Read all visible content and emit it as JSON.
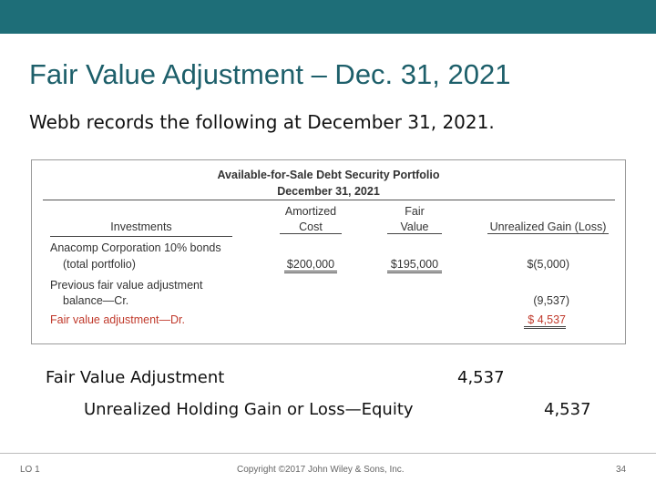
{
  "header": {
    "title": "Fair Value Adjustment – Dec. 31, 2021"
  },
  "intro": "Webb records the following at December 31, 2021.",
  "table": {
    "title": "Available-for-Sale Debt Security Portfolio",
    "subtitle": "December 31, 2021",
    "columns": [
      [
        "Investments"
      ],
      [
        "Amortized",
        "Cost"
      ],
      [
        "Fair",
        "Value"
      ],
      [
        "Unrealized Gain (Loss)"
      ]
    ],
    "rows": [
      {
        "label": [
          "Anacomp Corporation 10% bonds",
          "(total portfolio)"
        ],
        "cost": "$200,000",
        "fair": "$195,000",
        "gain": "$(5,000)"
      },
      {
        "label": [
          "Previous fair value adjustment",
          "balance—Cr."
        ],
        "gain": "(9,537)"
      },
      {
        "label": [
          "Fair value adjustment—Dr."
        ],
        "gain": "$ 4,537"
      }
    ]
  },
  "entry": {
    "debit_account": "Fair Value Adjustment",
    "debit": "4,537",
    "credit_account": "Unrealized Holding Gain or Loss—Equity",
    "credit": "4,537"
  },
  "footer": {
    "lo": "LO 1",
    "copyright": "Copyright ©2017 John Wiley & Sons, Inc.",
    "page": "34"
  }
}
